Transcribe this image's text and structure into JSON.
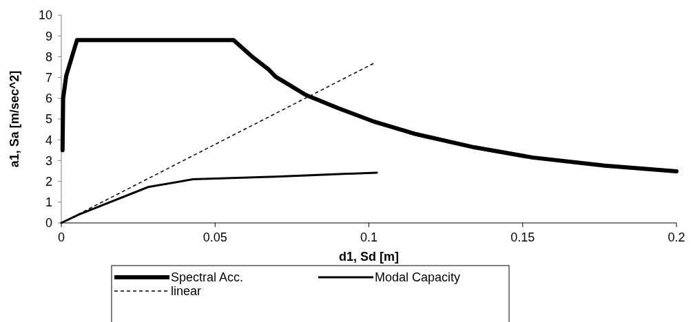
{
  "chart_data": {
    "type": "line",
    "xlabel": "d1, Sd [m]",
    "ylabel": "a1, Sa [m/sec^2]",
    "xlim": [
      0,
      0.2
    ],
    "xticks": [
      0,
      0.05,
      0.1,
      0.15,
      0.2
    ],
    "ylim": [
      0,
      10
    ],
    "yticks": [
      0,
      1,
      2,
      3,
      4,
      5,
      6,
      7,
      8,
      9,
      10
    ],
    "grid": false,
    "legend": "bottom",
    "marker": "none",
    "series": [
      {
        "name": "Spectral Acc.",
        "color": "#000000",
        "line_style": "solid",
        "x": [
          0.0004,
          0.0006,
          0.0016,
          0.0051,
          0.056,
          0.0619,
          0.0673,
          0.0697,
          0.0729,
          0.0795,
          0.0899,
          0.1012,
          0.1154,
          0.1342,
          0.1531,
          0.1767,
          0.2
        ],
        "values": [
          3.5,
          6.0,
          7.08,
          8.8,
          8.8,
          8.02,
          7.4,
          7.03,
          6.75,
          6.16,
          5.53,
          4.9,
          4.27,
          3.64,
          3.15,
          2.76,
          2.48
        ]
      },
      {
        "name": "Modal Capacity",
        "color": "#000000",
        "line_style": "solid",
        "x": [
          0,
          0.0058,
          0.0283,
          0.039,
          0.0428,
          0.0697,
          0.1026
        ],
        "values": [
          0,
          0.41,
          1.73,
          2.0,
          2.1,
          2.23,
          2.42
        ]
      },
      {
        "name": "linear",
        "color": "#000000",
        "line_style": "dashed",
        "x": [
          0,
          0.1021
        ],
        "values": [
          0,
          7.72
        ]
      }
    ]
  }
}
